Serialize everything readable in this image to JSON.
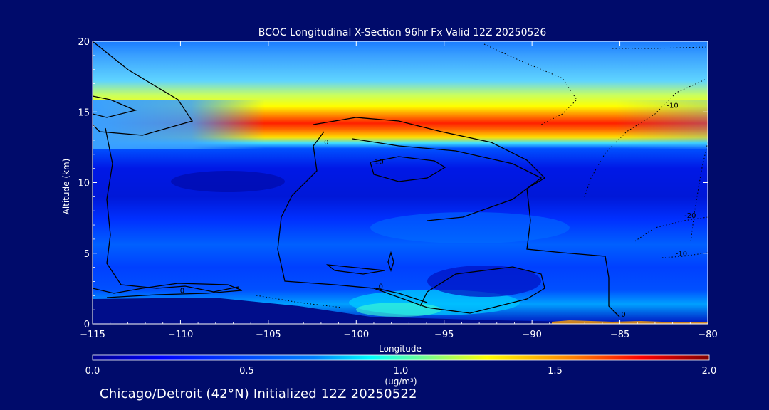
{
  "chart_data": {
    "type": "heatmap",
    "title": "BCOC Longitudinal X-Section 96hr  Fx Valid 12Z 20250526",
    "xlabel": "Longitude",
    "ylabel": "Altitude (km)",
    "xlim": [
      -115,
      -80
    ],
    "ylim": [
      0,
      20
    ],
    "x_ticks": [
      -115,
      -110,
      -105,
      -100,
      -95,
      -90,
      -85,
      -80
    ],
    "y_ticks": [
      0,
      5,
      10,
      15,
      20
    ],
    "colorbar": {
      "range": [
        0.0,
        2.0
      ],
      "ticks": [
        0.0,
        0.5,
        1.0,
        1.5,
        2.0
      ],
      "tick_labels": [
        "0.0",
        "0.5",
        "1.0",
        "1.5",
        "2.0"
      ],
      "unit": "(ug/m³)"
    },
    "contour_labels": [
      {
        "text": "0",
        "x": -101.7,
        "y": 12.7
      },
      {
        "text": "10",
        "x": -98.7,
        "y": 11.3
      },
      {
        "text": "0",
        "x": -109.9,
        "y": 2.2
      },
      {
        "text": "0",
        "x": -98.6,
        "y": 2.5
      },
      {
        "text": "0",
        "x": -84.8,
        "y": 0.5
      },
      {
        "text": "-10",
        "x": -82.0,
        "y": 15.3
      },
      {
        "text": "-20",
        "x": -81.0,
        "y": 7.5
      },
      {
        "text": "-10",
        "x": -81.5,
        "y": 4.8
      }
    ],
    "features": {
      "peak_band_altitude_km": 14,
      "peak_value": 2.0,
      "band_longitude_range": [
        -109,
        -83
      ]
    },
    "colors": {
      "background": "#000b6b",
      "colormap": [
        "#00008f",
        "#0000ff",
        "#0080ff",
        "#00ffff",
        "#80ff80",
        "#ffff00",
        "#ff8000",
        "#ff0000",
        "#800000"
      ]
    }
  },
  "caption": "Chicago/Detroit (42°N) Initialized 12Z 20250522"
}
